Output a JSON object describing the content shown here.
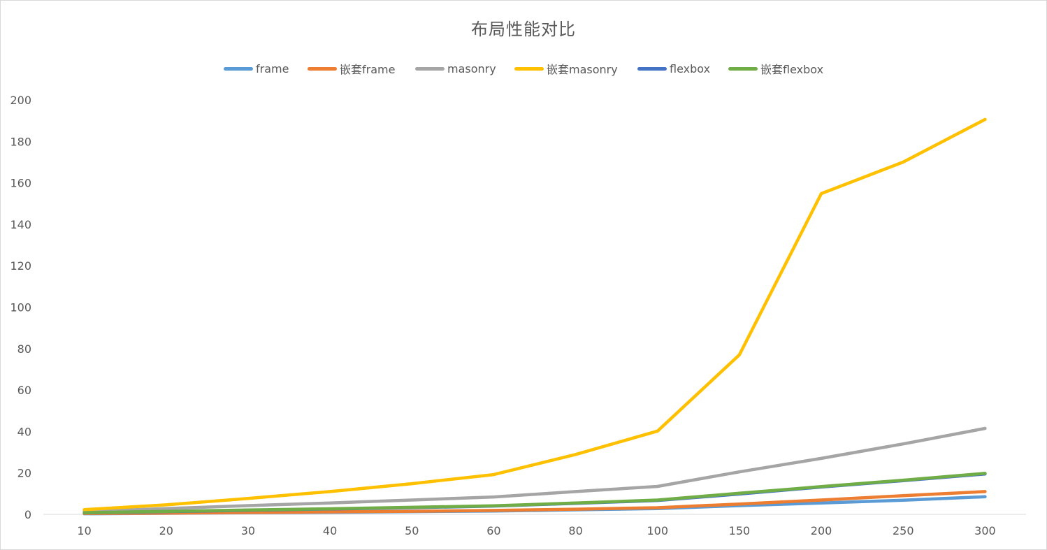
{
  "chart_data": {
    "type": "line",
    "title": "布局性能对比",
    "xlabel": "",
    "ylabel": "",
    "categories": [
      "10",
      "20",
      "30",
      "40",
      "50",
      "60",
      "80",
      "100",
      "150",
      "200",
      "250",
      "300"
    ],
    "ylim": [
      0,
      200
    ],
    "yticks": [
      "0",
      "20",
      "40",
      "60",
      "80",
      "100",
      "120",
      "140",
      "160",
      "180",
      "200"
    ],
    "grid": false,
    "legend_position": "top",
    "series": [
      {
        "name": "frame",
        "color": "#5B9BD5",
        "values": [
          0.3,
          0.5,
          0.8,
          1.0,
          1.3,
          1.6,
          2.2,
          2.8,
          4.2,
          5.5,
          6.8,
          8.5
        ]
      },
      {
        "name": "嵌套frame",
        "color": "#ED7D31",
        "values": [
          0.4,
          0.6,
          0.9,
          1.2,
          1.5,
          1.9,
          2.5,
          3.2,
          5.0,
          6.9,
          9.0,
          11.0
        ]
      },
      {
        "name": "masonry",
        "color": "#A5A5A5",
        "values": [
          1.4,
          2.8,
          4.2,
          5.5,
          6.9,
          8.4,
          11.0,
          13.5,
          20.5,
          27.0,
          34.0,
          41.5
        ]
      },
      {
        "name": "嵌套masonry",
        "color": "#FFC000",
        "values": [
          2.3,
          4.6,
          7.7,
          11.0,
          14.8,
          19.2,
          28.9,
          40.2,
          77.0,
          154.8,
          170.0,
          190.6
        ]
      },
      {
        "name": "flexbox",
        "color": "#4472C4",
        "values": [
          0.7,
          1.3,
          2.0,
          2.6,
          3.2,
          4.0,
          5.3,
          6.7,
          9.8,
          13.2,
          16.3,
          19.5
        ]
      },
      {
        "name": "嵌套flexbox",
        "color": "#70AD47",
        "values": [
          0.8,
          1.4,
          2.1,
          2.7,
          3.4,
          4.1,
          5.5,
          6.9,
          10.2,
          13.4,
          16.5,
          19.8
        ]
      }
    ]
  }
}
